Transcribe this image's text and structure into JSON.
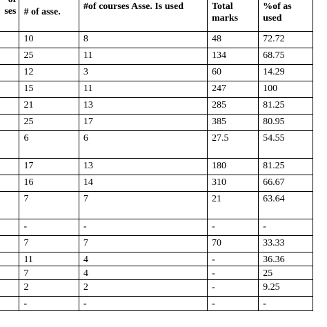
{
  "table": {
    "headers": [
      "of\nses",
      "# of asse.",
      "#of courses Asse. Is used",
      "Total marks",
      "%of as\nused"
    ],
    "rows": [
      {
        "c1": "10",
        "c2": "8",
        "c3": "48",
        "c4": "72.72"
      },
      {
        "c1": "25",
        "c2": "11",
        "c3": "134",
        "c4": "68.75"
      },
      {
        "c1": "12",
        "c2": "3",
        "c3": "60",
        "c4": "14.29"
      },
      {
        "c1": "15",
        "c2": "11",
        "c3": "247",
        "c4": "100"
      },
      {
        "c1": "21",
        "c2": "13",
        "c3": "285",
        "c4": "81.25"
      },
      {
        "c1": "25",
        "c2": "17",
        "c3": "385",
        "c4": "80.95"
      },
      {
        "c1": "6",
        "c2": "6",
        "c3": "27.5",
        "c4": "54.55"
      },
      {
        "c1": "17",
        "c2": "13",
        "c3": "180",
        "c4": "81.25"
      },
      {
        "c1": "16",
        "c2": "14",
        "c3": "310",
        "c4": "66.67"
      },
      {
        "c1": "7",
        "c2": "7",
        "c3": "21",
        "c4": "63.64"
      },
      {
        "c1": "-",
        "c2": "-",
        "c3": "-",
        "c4": "-"
      },
      {
        "c1": "7",
        "c2": "7",
        "c3": "70",
        "c4": "33.33"
      },
      {
        "c1": "11",
        "c2": "4",
        "c3": "-",
        "c4": "36.36"
      },
      {
        "c1": "7",
        "c2": "4",
        "c3": "-",
        "c4": "25"
      },
      {
        "c1": "2",
        "c2": "2",
        "c3": "-",
        "c4": "9.25"
      },
      {
        "c1": "-",
        "c2": "-",
        "c3": "-",
        "c4": "-"
      }
    ]
  }
}
